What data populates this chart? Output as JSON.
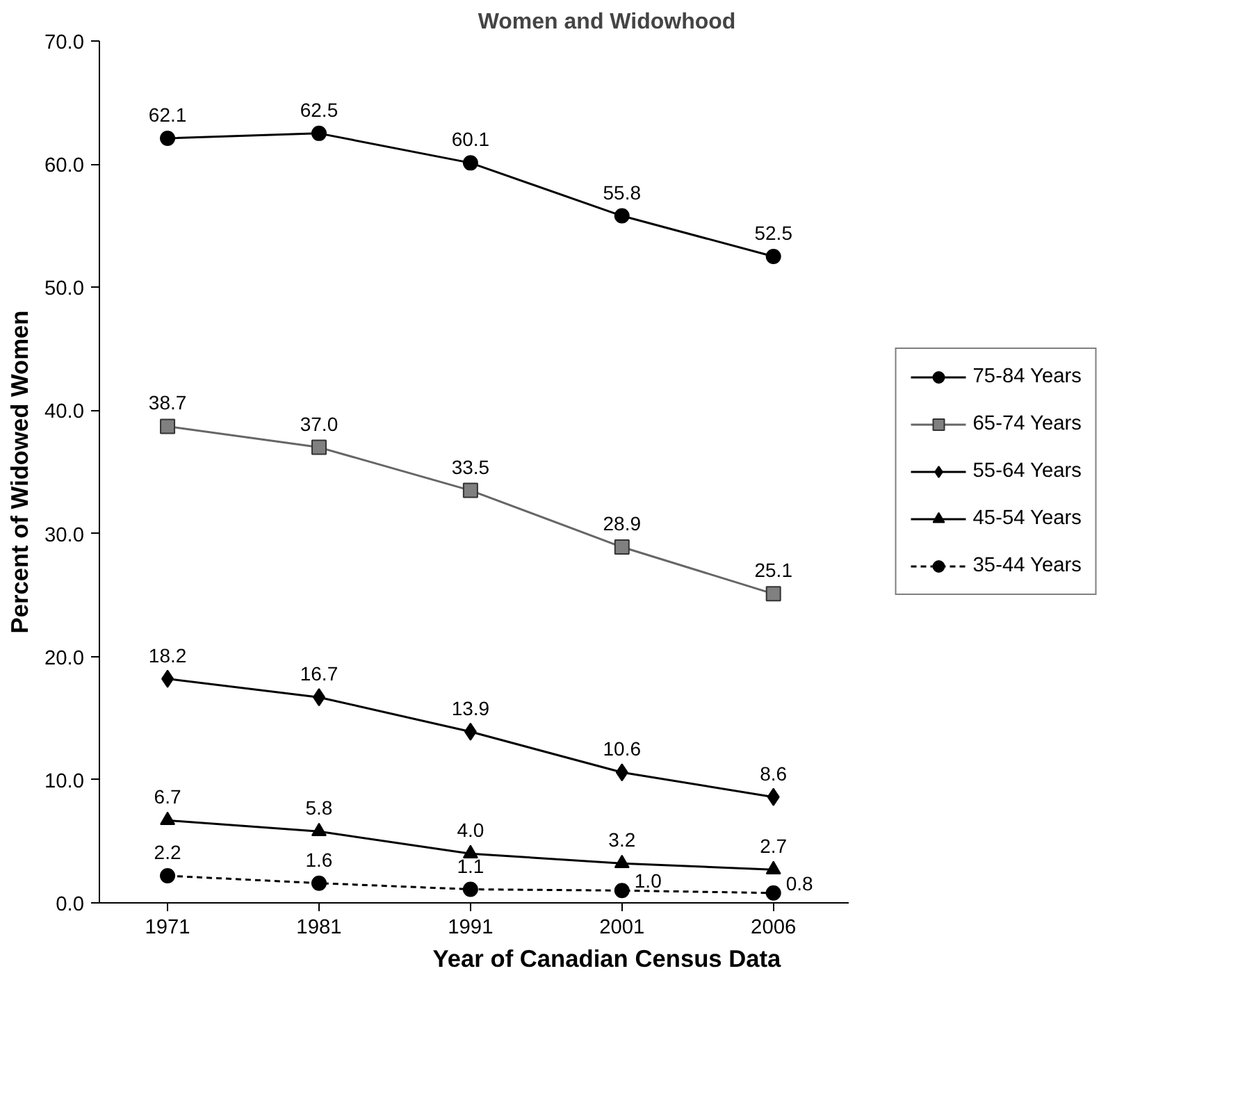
{
  "chart_data": {
    "type": "line",
    "title": "Women and Widowhood",
    "xlabel": "Year of Canadian Census Data",
    "ylabel": "Percent of Widowed Women",
    "categories": [
      "1971",
      "1981",
      "1991",
      "2001",
      "2006"
    ],
    "series": [
      {
        "name": "75-84 Years",
        "color": "#000000",
        "marker": "circle",
        "line_style": "solid",
        "values": [
          62.1,
          62.5,
          60.1,
          55.8,
          52.5
        ],
        "value_labels": [
          "62.1",
          "62.5",
          "60.1",
          "55.8",
          "52.5"
        ]
      },
      {
        "name": "65-74 Years",
        "color": "#666666",
        "marker": "square",
        "line_style": "solid",
        "values": [
          38.7,
          37.0,
          33.5,
          28.9,
          25.1
        ],
        "value_labels": [
          "38.7",
          "37.0",
          "33.5",
          "28.9",
          "25.1"
        ]
      },
      {
        "name": "55-64 Years",
        "color": "#000000",
        "marker": "diamond",
        "line_style": "solid",
        "values": [
          18.2,
          16.7,
          13.9,
          10.6,
          8.6
        ],
        "value_labels": [
          "18.2",
          "16.7",
          "13.9",
          "10.6",
          "8.6"
        ]
      },
      {
        "name": "45-54 Years",
        "color": "#000000",
        "marker": "triangle",
        "line_style": "solid",
        "values": [
          6.7,
          5.8,
          4.0,
          3.2,
          2.7
        ],
        "value_labels": [
          "6.7",
          "5.8",
          "4.0",
          "3.2",
          "2.7"
        ]
      },
      {
        "name": "35-44 Years",
        "color": "#000000",
        "marker": "circle",
        "line_style": "dotted",
        "values": [
          2.2,
          1.6,
          1.1,
          1.0,
          0.8
        ],
        "value_labels": [
          "2.2",
          "1.6",
          "1.1",
          "1.0",
          "0.8"
        ]
      }
    ],
    "ylim": [
      0,
      70
    ],
    "yticks": [
      {
        "value": 0,
        "label": "0.0"
      },
      {
        "value": 10,
        "label": "10.0"
      },
      {
        "value": 20,
        "label": "20.0"
      },
      {
        "value": 30,
        "label": "30.0"
      },
      {
        "value": 40,
        "label": "40.0"
      },
      {
        "value": 50,
        "label": "50.0"
      },
      {
        "value": 60,
        "label": "60.0"
      },
      {
        "value": 70,
        "label": "70.0"
      }
    ],
    "grid": false,
    "legend": "right"
  }
}
